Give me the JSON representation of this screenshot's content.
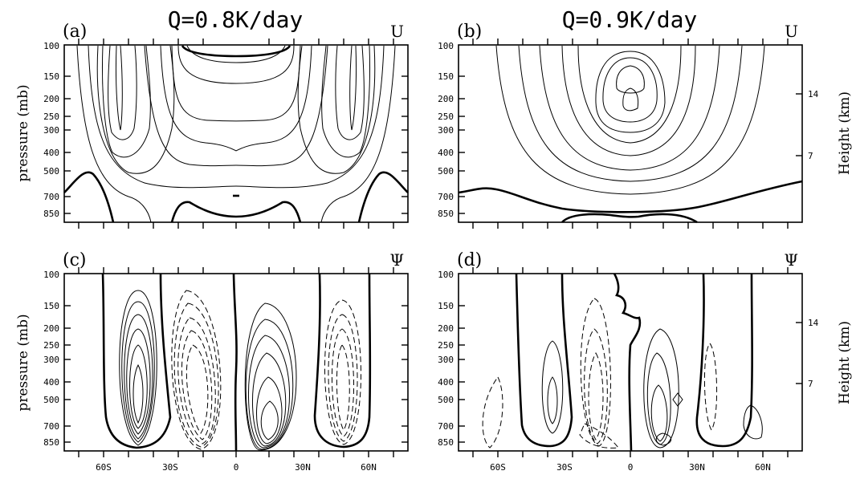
{
  "chart_data": [
    {
      "type": "contour",
      "panel_label": "(a)",
      "title": "Q=0.8K/day",
      "variable": "U",
      "ylabel": "pressure (mb)",
      "x_ticks": [],
      "left_ticks": [
        "100",
        "150",
        "200",
        "250",
        "300",
        "400",
        "500",
        "700",
        "850"
      ],
      "right_ticks": [],
      "right_label": "",
      "contour_styles": [
        "solid-thin",
        "zero-line-thick"
      ]
    },
    {
      "type": "contour",
      "panel_label": "(b)",
      "title": "Q=0.9K/day",
      "variable": "U",
      "ylabel": "",
      "x_ticks": [],
      "left_ticks": [
        "100",
        "150",
        "200",
        "250",
        "300",
        "400",
        "500",
        "700",
        "850"
      ],
      "right_ticks": [
        "14",
        "7"
      ],
      "right_label": "Height (km)",
      "contour_styles": [
        "solid-thin",
        "zero-line-thick"
      ]
    },
    {
      "type": "contour",
      "panel_label": "(c)",
      "title": "",
      "variable": "Ψ",
      "ylabel": "pressure (mb)",
      "x_ticks": [
        "60S",
        "30S",
        "0",
        "30N",
        "60N"
      ],
      "left_ticks": [
        "100",
        "150",
        "200",
        "250",
        "300",
        "400",
        "500",
        "700",
        "850"
      ],
      "right_ticks": [],
      "right_label": "",
      "contour_styles": [
        "solid-positive",
        "dashed-negative",
        "zero-line-thick"
      ]
    },
    {
      "type": "contour",
      "panel_label": "(d)",
      "title": "",
      "variable": "Ψ",
      "ylabel": "",
      "x_ticks": [
        "60S",
        "30S",
        "0",
        "30N",
        "60N"
      ],
      "left_ticks": [
        "100",
        "150",
        "200",
        "250",
        "300",
        "400",
        "500",
        "700",
        "850"
      ],
      "right_ticks": [
        "14",
        "7"
      ],
      "right_label": "Height (km)",
      "contour_styles": [
        "solid-positive",
        "dashed-negative",
        "zero-line-thick"
      ]
    }
  ]
}
